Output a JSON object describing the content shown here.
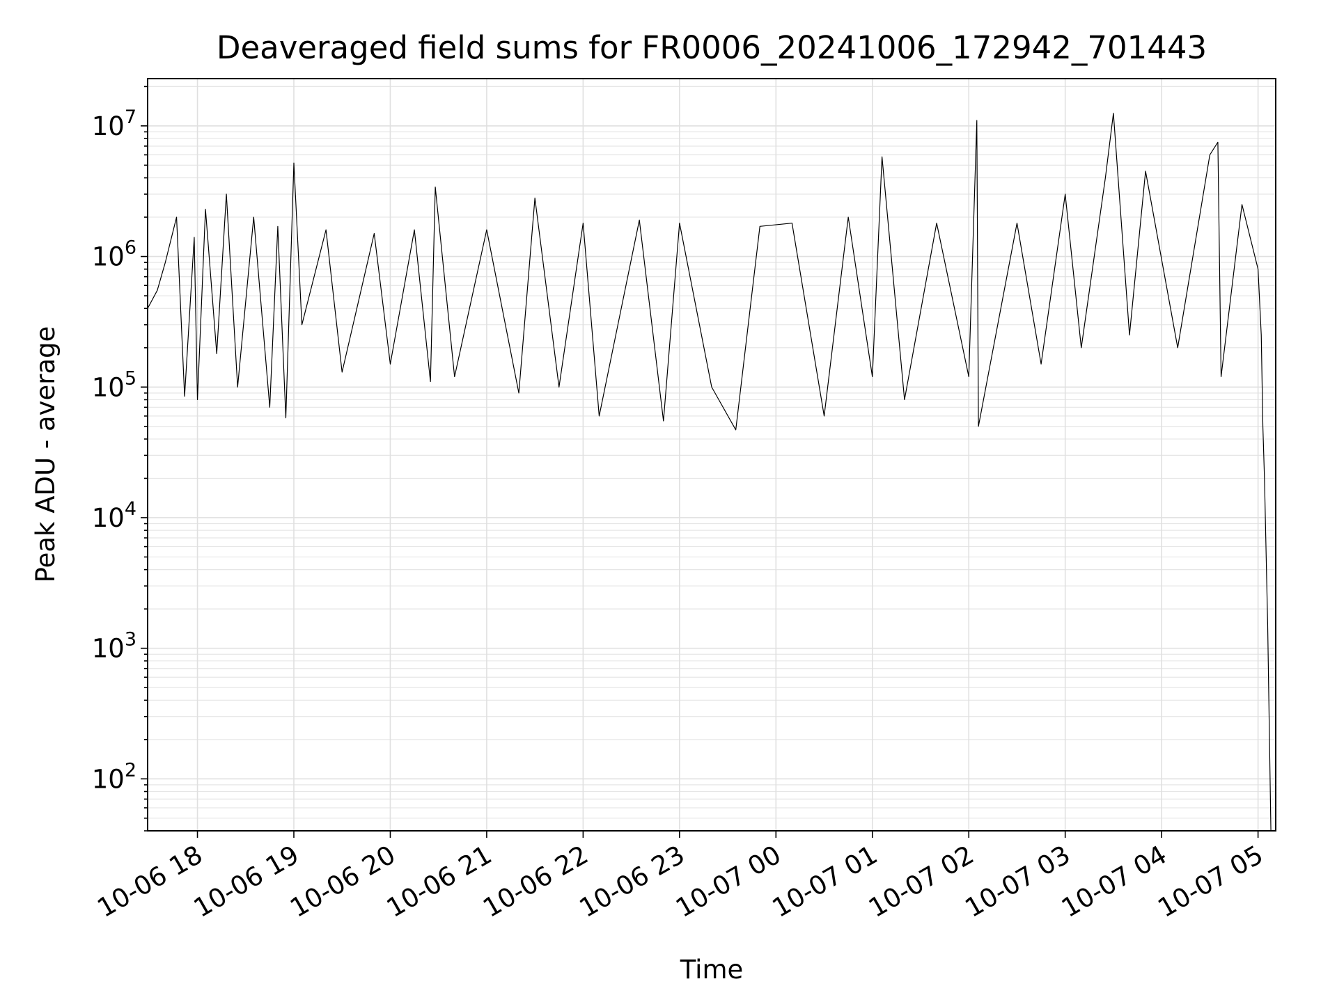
{
  "chart_data": {
    "type": "line",
    "title": "Deaveraged field sums for FR0006_20241006_172942_701443",
    "xlabel": "Time",
    "ylabel": "Peak ADU - average",
    "y_scale": "log",
    "ylim": [
      40,
      23000000
    ],
    "xlim": [
      "2024-10-06 17:29",
      "2024-10-07 05:11"
    ],
    "grid": true,
    "line_color": "#000000",
    "x_ticks": [
      {
        "x": "2024-10-06 18:00",
        "label": "10-06 18"
      },
      {
        "x": "2024-10-06 19:00",
        "label": "10-06 19"
      },
      {
        "x": "2024-10-06 20:00",
        "label": "10-06 20"
      },
      {
        "x": "2024-10-06 21:00",
        "label": "10-06 21"
      },
      {
        "x": "2024-10-06 22:00",
        "label": "10-06 22"
      },
      {
        "x": "2024-10-06 23:00",
        "label": "10-06 23"
      },
      {
        "x": "2024-10-07 00:00",
        "label": "10-07 00"
      },
      {
        "x": "2024-10-07 01:00",
        "label": "10-07 01"
      },
      {
        "x": "2024-10-07 02:00",
        "label": "10-07 02"
      },
      {
        "x": "2024-10-07 03:00",
        "label": "10-07 03"
      },
      {
        "x": "2024-10-07 04:00",
        "label": "10-07 04"
      },
      {
        "x": "2024-10-07 05:00",
        "label": "10-07 05"
      }
    ],
    "y_ticks": [
      {
        "value": 100,
        "base": "10",
        "exp": "2"
      },
      {
        "value": 1000,
        "base": "10",
        "exp": "3"
      },
      {
        "value": 10000,
        "base": "10",
        "exp": "4"
      },
      {
        "value": 100000,
        "base": "10",
        "exp": "5"
      },
      {
        "value": 1000000,
        "base": "10",
        "exp": "6"
      },
      {
        "value": 10000000,
        "base": "10",
        "exp": "7"
      }
    ],
    "series": [
      {
        "points": [
          [
            "2024-10-06 17:29",
            400000
          ],
          [
            "2024-10-06 17:35",
            550000
          ],
          [
            "2024-10-06 17:40",
            900000
          ],
          [
            "2024-10-06 17:47",
            2000000
          ],
          [
            "2024-10-06 17:52",
            85000
          ],
          [
            "2024-10-06 17:58",
            1400000
          ],
          [
            "2024-10-06 18:00",
            80000
          ],
          [
            "2024-10-06 18:05",
            2300000
          ],
          [
            "2024-10-06 18:12",
            180000
          ],
          [
            "2024-10-06 18:18",
            3000000
          ],
          [
            "2024-10-06 18:25",
            100000
          ],
          [
            "2024-10-06 18:35",
            2000000
          ],
          [
            "2024-10-06 18:45",
            70000
          ],
          [
            "2024-10-06 18:50",
            1700000
          ],
          [
            "2024-10-06 18:55",
            58000
          ],
          [
            "2024-10-06 19:00",
            5200000
          ],
          [
            "2024-10-06 19:05",
            300000
          ],
          [
            "2024-10-06 19:20",
            1600000
          ],
          [
            "2024-10-06 19:30",
            130000
          ],
          [
            "2024-10-06 19:50",
            1500000
          ],
          [
            "2024-10-06 20:00",
            150000
          ],
          [
            "2024-10-06 20:15",
            1600000
          ],
          [
            "2024-10-06 20:25",
            110000
          ],
          [
            "2024-10-06 20:28",
            3400000
          ],
          [
            "2024-10-06 20:40",
            120000
          ],
          [
            "2024-10-06 21:00",
            1600000
          ],
          [
            "2024-10-06 21:20",
            90000
          ],
          [
            "2024-10-06 21:30",
            2800000
          ],
          [
            "2024-10-06 21:45",
            100000
          ],
          [
            "2024-10-06 22:00",
            1800000
          ],
          [
            "2024-10-06 22:10",
            60000
          ],
          [
            "2024-10-06 22:35",
            1900000
          ],
          [
            "2024-10-06 22:50",
            55000
          ],
          [
            "2024-10-06 23:00",
            1800000
          ],
          [
            "2024-10-06 23:20",
            100000
          ],
          [
            "2024-10-06 23:35",
            47000
          ],
          [
            "2024-10-06 23:50",
            1700000
          ],
          [
            "2024-10-07 00:10",
            1800000
          ],
          [
            "2024-10-07 00:30",
            60000
          ],
          [
            "2024-10-07 00:45",
            2000000
          ],
          [
            "2024-10-07 01:00",
            120000
          ],
          [
            "2024-10-07 01:06",
            5800000
          ],
          [
            "2024-10-07 01:20",
            80000
          ],
          [
            "2024-10-07 01:40",
            1800000
          ],
          [
            "2024-10-07 02:00",
            120000
          ],
          [
            "2024-10-07 02:05",
            11000000
          ],
          [
            "2024-10-07 02:06",
            50000
          ],
          [
            "2024-10-07 02:30",
            1800000
          ],
          [
            "2024-10-07 02:45",
            150000
          ],
          [
            "2024-10-07 03:00",
            3000000
          ],
          [
            "2024-10-07 03:10",
            200000
          ],
          [
            "2024-10-07 03:25",
            4000000
          ],
          [
            "2024-10-07 03:30",
            12500000
          ],
          [
            "2024-10-07 03:40",
            250000
          ],
          [
            "2024-10-07 03:50",
            4500000
          ],
          [
            "2024-10-07 04:10",
            200000
          ],
          [
            "2024-10-07 04:30",
            6000000
          ],
          [
            "2024-10-07 04:35",
            7500000
          ],
          [
            "2024-10-07 04:37",
            120000
          ],
          [
            "2024-10-07 04:50",
            2500000
          ],
          [
            "2024-10-07 05:00",
            800000
          ],
          [
            "2024-10-07 05:02",
            250000
          ],
          [
            "2024-10-07 05:03",
            50000
          ],
          [
            "2024-10-07 05:04",
            20000
          ],
          [
            "2024-10-07 05:06",
            1500
          ],
          [
            "2024-10-07 05:08",
            40
          ]
        ]
      }
    ]
  }
}
